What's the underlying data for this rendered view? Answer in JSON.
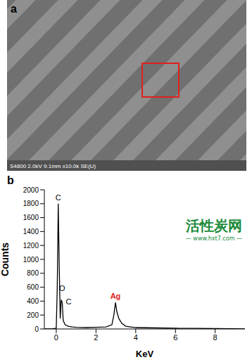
{
  "panel_a": {
    "label": "a",
    "caption": "S4800 2.0kV 9.1mm x10.0k SE(U)"
  },
  "chart_data": {
    "type": "line",
    "title": "b",
    "x_label": "KeV",
    "y_label": "Counts",
    "x": [
      -0.6,
      -0.2,
      0.0,
      0.05,
      0.1,
      0.15,
      0.2,
      0.25,
      0.3,
      0.35,
      0.45,
      0.6,
      0.8,
      1.0,
      1.5,
      2.0,
      2.5,
      2.8,
      2.9,
      2.98,
      3.05,
      3.15,
      3.3,
      3.5,
      4.0,
      5.0,
      6.0,
      7.0,
      8.0,
      9.0,
      9.5
    ],
    "values": [
      0,
      0,
      10,
      600,
      1800,
      900,
      150,
      420,
      380,
      120,
      60,
      40,
      30,
      25,
      20,
      25,
      30,
      60,
      200,
      380,
      250,
      150,
      80,
      40,
      20,
      15,
      10,
      8,
      5,
      3,
      2
    ],
    "color": "#000000",
    "xlim": [
      -0.6,
      9.5
    ],
    "xticks": [
      0,
      2,
      4,
      6,
      8
    ],
    "ylim": [
      0,
      2000
    ],
    "yticks": [
      0,
      200,
      400,
      600,
      800,
      1000,
      1200,
      1400,
      1600,
      1800,
      2000
    ],
    "annotations": [
      {
        "text": "C",
        "x": 0.1,
        "y": 1800,
        "color": "#000000"
      },
      {
        "text": "O",
        "x": 0.3,
        "y": 500,
        "color": "#000000"
      },
      {
        "text": "C",
        "x": 0.3,
        "y": 390,
        "color": "#000000"
      },
      {
        "text": "Ag",
        "x": 2.98,
        "y": 380,
        "color": "#e02020"
      }
    ]
  },
  "watermark": {
    "name": "活性炭网",
    "url": "— www.hxt7.com —"
  }
}
